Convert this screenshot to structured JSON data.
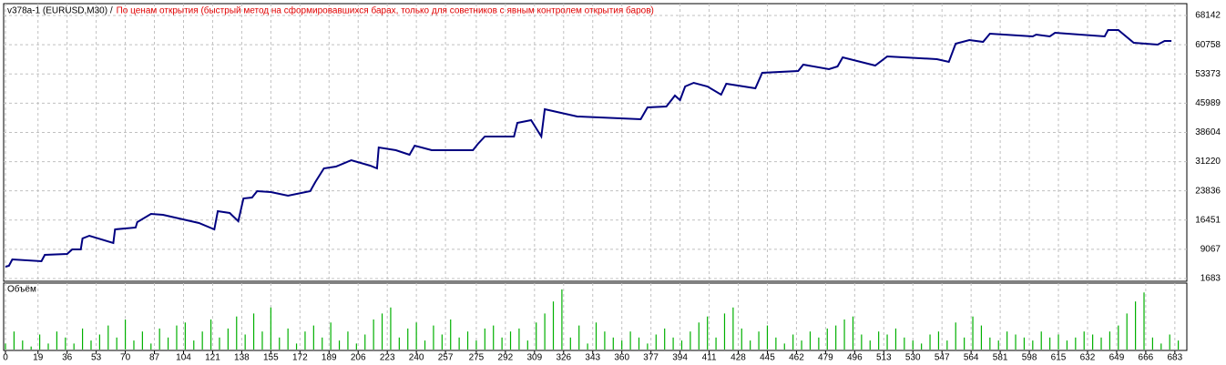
{
  "chart_data": [
    {
      "type": "line",
      "title": "v378a-1 (EURUSD,M30) /",
      "subtitle": "По ценам открытия (быстрый метод на сформировавшихся барах, только для советников с явным контролем открытия баров)",
      "x": [
        0,
        2,
        4,
        21,
        23,
        36,
        39,
        44,
        45,
        49,
        63,
        64,
        76,
        77,
        85,
        92,
        113,
        122,
        124,
        131,
        136,
        139,
        144,
        147,
        155,
        165,
        178,
        181,
        186,
        193,
        202,
        213,
        217,
        218,
        228,
        236,
        239,
        249,
        273,
        276,
        280,
        297,
        299,
        307,
        313,
        315,
        334,
        371,
        375,
        386,
        391,
        394,
        397,
        402,
        410,
        418,
        421,
        438,
        442,
        463,
        466,
        481,
        486,
        489,
        508,
        515,
        544,
        551,
        555,
        563,
        571,
        575,
        600,
        602,
        610,
        613,
        642,
        644,
        650,
        659,
        673,
        677,
        681
      ],
      "series": [
        {
          "color": "#000080",
          "values": [
            4673,
            4903,
            6513,
            6053,
            7663,
            7893,
            9043,
            9043,
            11803,
            12493,
            10653,
            14103,
            14563,
            15943,
            18013,
            17783,
            15713,
            14103,
            18703,
            18243,
            16173,
            21923,
            22153,
            23763,
            23533,
            22613,
            23763,
            26063,
            29513,
            29973,
            31583,
            30203,
            29513,
            34803,
            34113,
            32963,
            35263,
            34113,
            34113,
            35723,
            37563,
            37563,
            41013,
            41703,
            37563,
            44463,
            42623,
            41933,
            44923,
            45153,
            47913,
            46763,
            50213,
            51133,
            50213,
            48143,
            50903,
            49753,
            53663,
            54123,
            55733,
            54583,
            55273,
            57573,
            55503,
            57803,
            57113,
            56423,
            61023,
            61943,
            61483,
            63553,
            62863,
            63323,
            62863,
            63783,
            62863,
            64473,
            64473,
            61253,
            60793,
            61713,
            61713
          ]
        }
      ],
      "xlim": [
        0,
        690
      ],
      "ylim": [
        993,
        71143
      ],
      "yticks": [
        1683,
        9067,
        16451,
        23836,
        31220,
        38604,
        45989,
        53373,
        60758,
        68142
      ],
      "grid": true
    },
    {
      "type": "bar",
      "title": "Объём",
      "color": "#00b000",
      "x": [
        0,
        5,
        10,
        15,
        20,
        25,
        30,
        35,
        40,
        45,
        50,
        55,
        60,
        65,
        70,
        75,
        80,
        85,
        90,
        95,
        100,
        105,
        110,
        115,
        120,
        125,
        130,
        135,
        140,
        145,
        150,
        155,
        160,
        165,
        170,
        175,
        180,
        185,
        190,
        195,
        200,
        205,
        210,
        215,
        220,
        225,
        230,
        235,
        240,
        245,
        250,
        255,
        260,
        265,
        270,
        275,
        280,
        285,
        290,
        295,
        300,
        305,
        310,
        315,
        320,
        325,
        330,
        335,
        340,
        345,
        350,
        355,
        360,
        365,
        370,
        375,
        380,
        385,
        390,
        395,
        400,
        405,
        410,
        415,
        420,
        425,
        430,
        435,
        440,
        445,
        450,
        455,
        460,
        465,
        470,
        475,
        480,
        485,
        490,
        495,
        500,
        505,
        510,
        515,
        520,
        525,
        530,
        535,
        540,
        545,
        550,
        555,
        560,
        565,
        570,
        575,
        580,
        585,
        590,
        595,
        600,
        605,
        610,
        615,
        620,
        625,
        630,
        635,
        640,
        645,
        650,
        655,
        660,
        665,
        670,
        675,
        680,
        685
      ],
      "values": [
        10,
        30,
        15,
        5,
        25,
        10,
        30,
        20,
        10,
        35,
        15,
        25,
        40,
        20,
        50,
        15,
        30,
        10,
        35,
        20,
        40,
        45,
        15,
        30,
        50,
        20,
        35,
        55,
        25,
        60,
        30,
        70,
        20,
        35,
        10,
        30,
        40,
        20,
        45,
        15,
        30,
        10,
        25,
        50,
        60,
        70,
        20,
        35,
        45,
        15,
        40,
        25,
        50,
        20,
        30,
        15,
        35,
        40,
        20,
        30,
        35,
        15,
        45,
        60,
        80,
        100,
        20,
        40,
        10,
        45,
        30,
        20,
        15,
        30,
        20,
        10,
        25,
        35,
        20,
        15,
        30,
        45,
        55,
        20,
        60,
        70,
        35,
        15,
        30,
        40,
        20,
        10,
        25,
        15,
        30,
        20,
        35,
        40,
        50,
        55,
        25,
        15,
        30,
        25,
        35,
        20,
        15,
        10,
        25,
        30,
        15,
        45,
        20,
        55,
        40,
        20,
        15,
        30,
        25,
        20,
        15,
        30,
        20,
        25,
        15,
        20,
        30,
        25,
        20,
        30,
        40,
        60,
        80,
        95,
        20,
        10,
        25,
        15
      ],
      "xlim": [
        0,
        690
      ],
      "ylim": [
        0,
        100
      ],
      "xticks": [
        0,
        19,
        36,
        53,
        70,
        87,
        104,
        121,
        138,
        155,
        172,
        189,
        206,
        223,
        240,
        257,
        275,
        292,
        309,
        326,
        343,
        360,
        377,
        394,
        411,
        428,
        445,
        462,
        479,
        496,
        513,
        530,
        547,
        564,
        581,
        598,
        615,
        632,
        649,
        666,
        683
      ],
      "grid": true
    }
  ]
}
